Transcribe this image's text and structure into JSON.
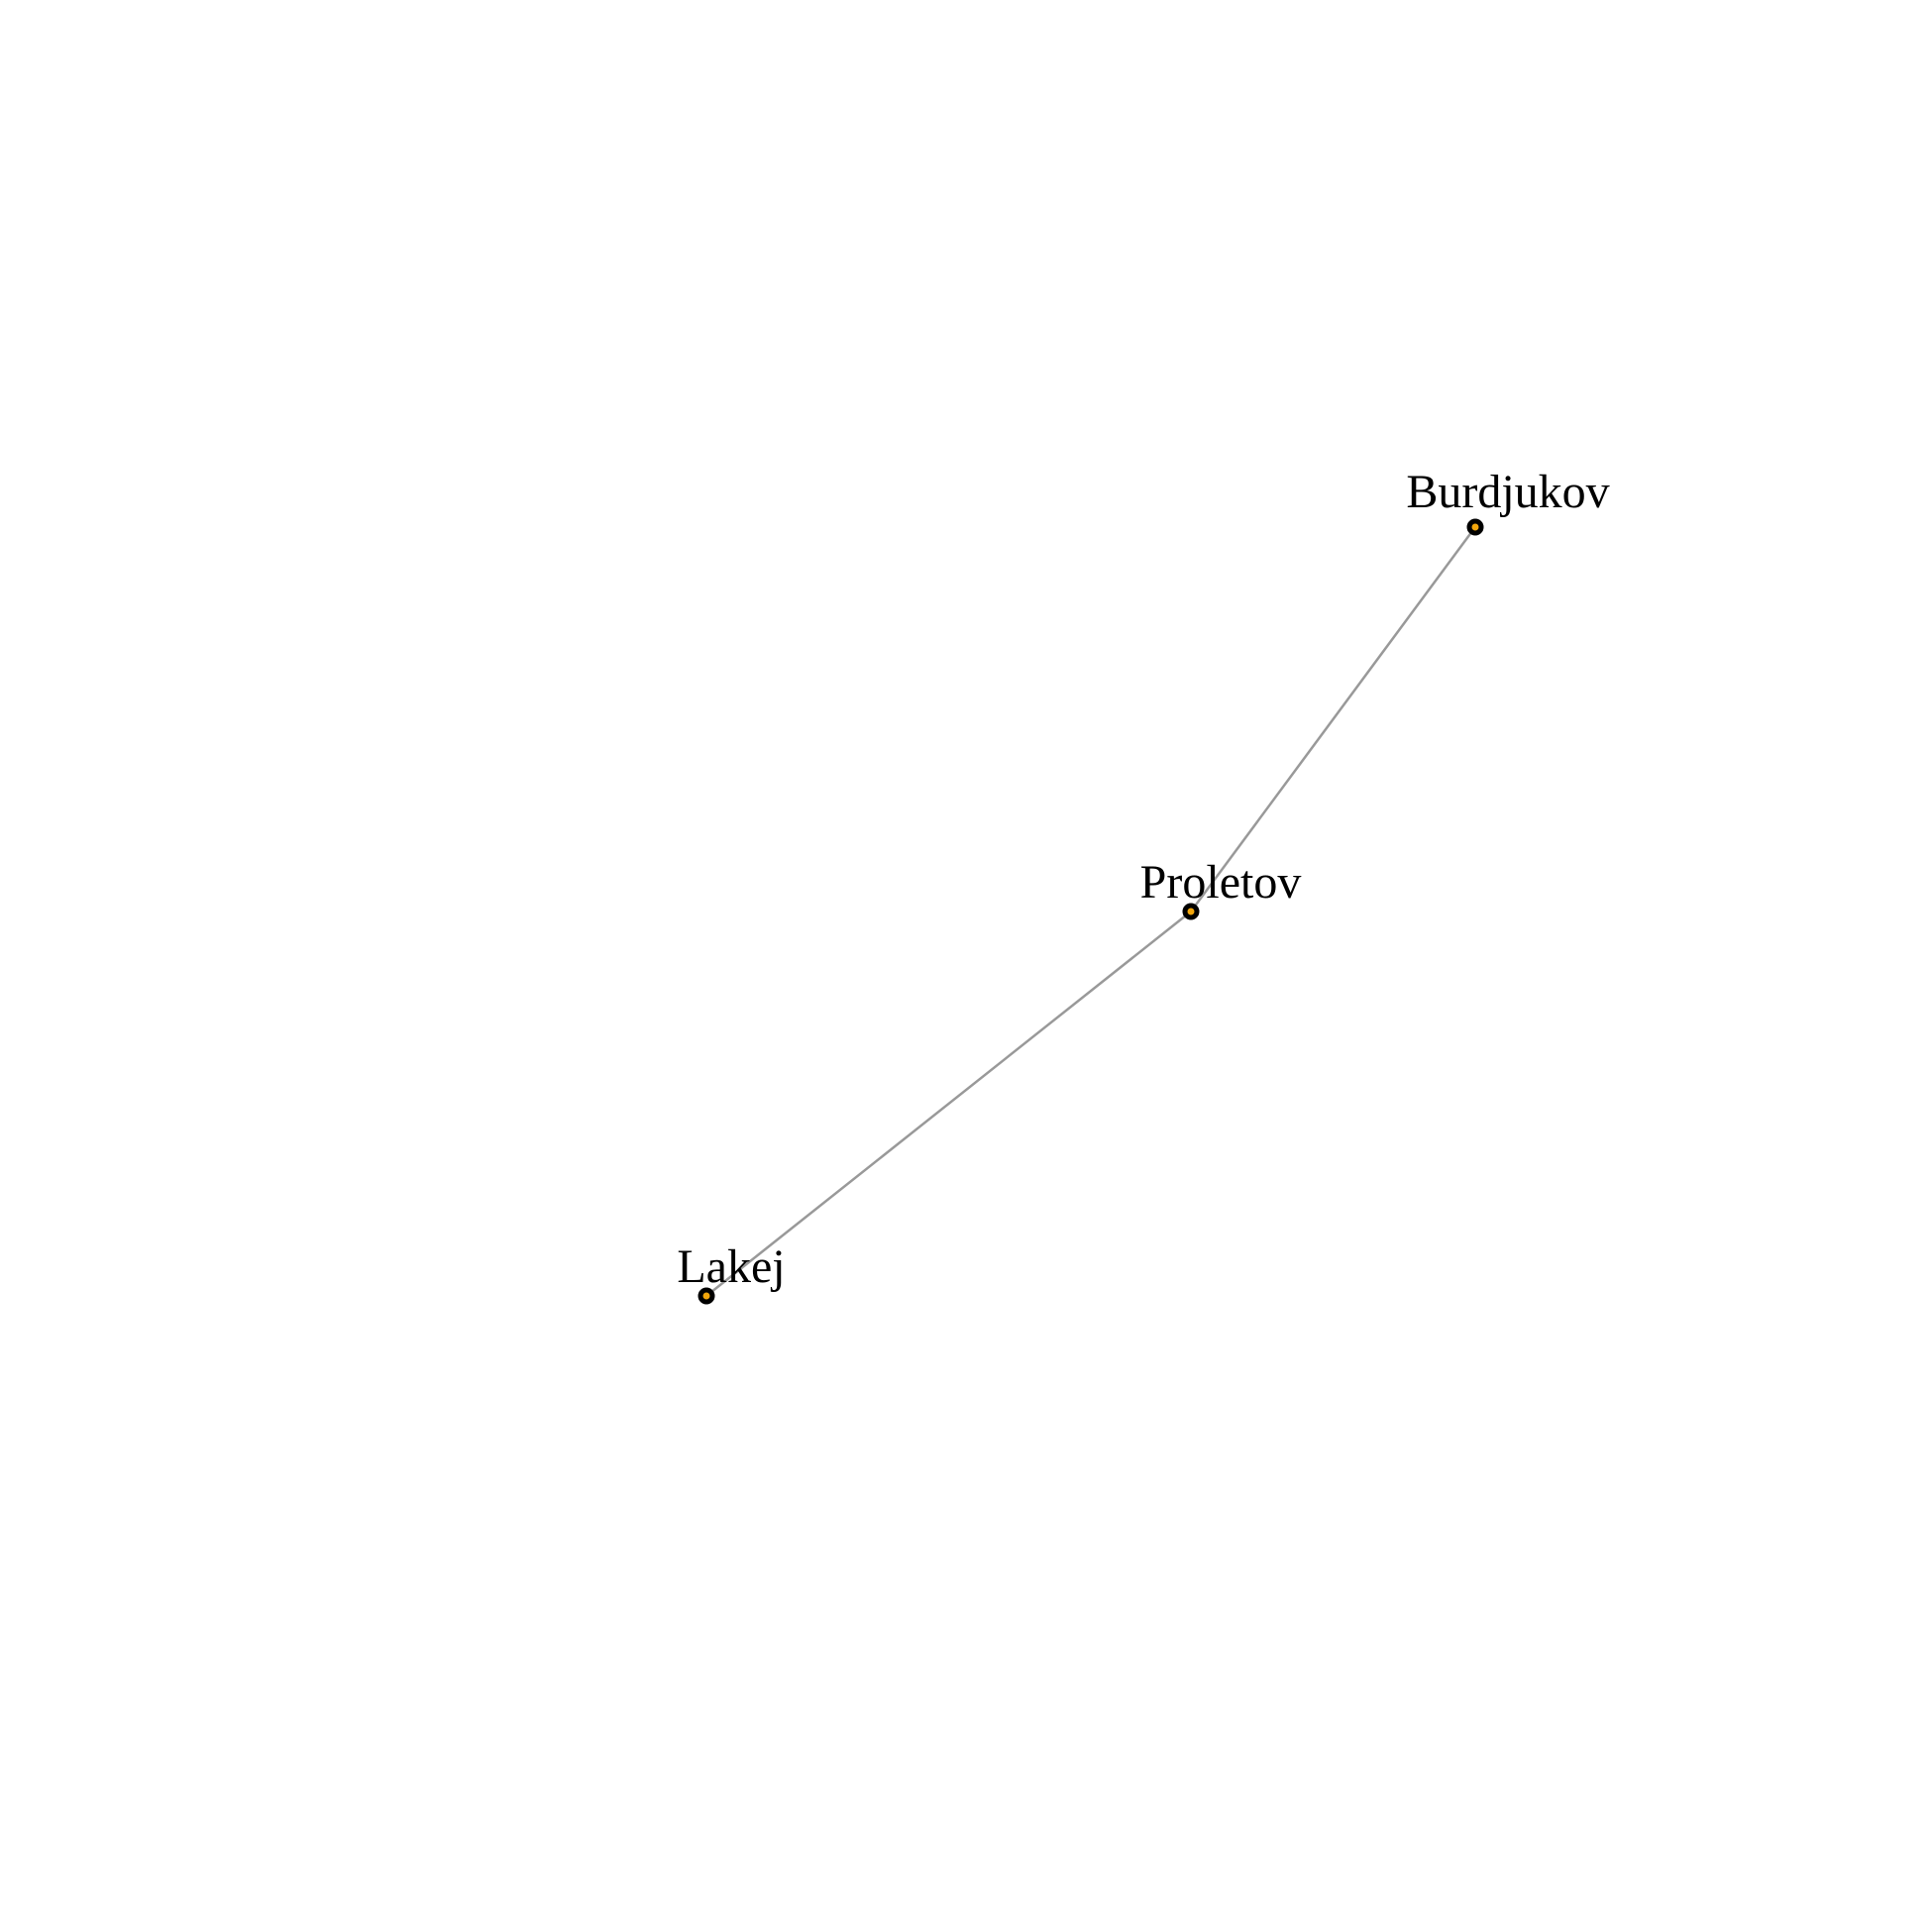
{
  "network": {
    "colors": {
      "background": "#ffffff",
      "edge": "#999999",
      "node_fill": "#f2a60c",
      "node_border": "#000000",
      "label": "#000000"
    },
    "nodes": [
      {
        "id": "burdjukov",
        "label": "Burdjukov"
      },
      {
        "id": "proletov",
        "label": "Proletov"
      },
      {
        "id": "lakej",
        "label": "Lakej"
      }
    ],
    "edges": [
      {
        "source": "burdjukov",
        "target": "proletov"
      },
      {
        "source": "proletov",
        "target": "lakej"
      }
    ]
  }
}
